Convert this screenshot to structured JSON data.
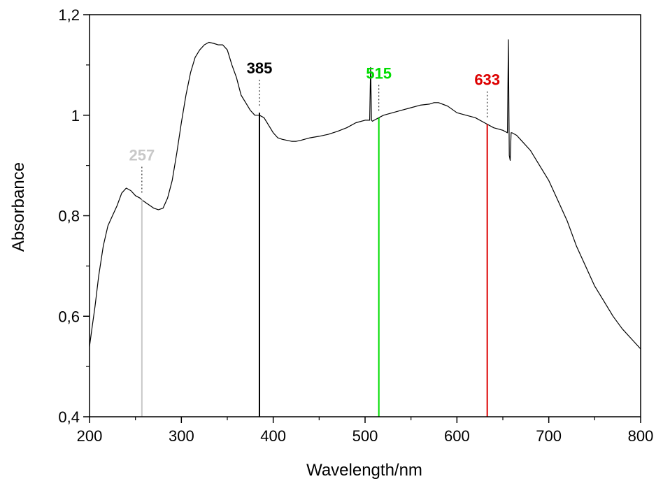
{
  "chart_data": {
    "type": "line",
    "title": "",
    "xlabel": "Wavelength/nm",
    "ylabel": "Absorbance",
    "xlim": [
      200,
      800
    ],
    "ylim": [
      0.4,
      1.2
    ],
    "x_ticks": [
      200,
      300,
      400,
      500,
      600,
      700,
      800
    ],
    "x_tick_labels": [
      "200",
      "300",
      "400",
      "500",
      "600",
      "700",
      "800"
    ],
    "y_ticks": [
      0.4,
      0.6,
      0.8,
      1.0,
      1.2
    ],
    "y_tick_labels": [
      "0,4",
      "0,6",
      "0,8",
      "1",
      "1,2"
    ],
    "grid": false,
    "legend": "none",
    "series": [
      {
        "color": "#000000",
        "x": [
          200,
          203,
          206,
          210,
          215,
          220,
          225,
          230,
          235,
          240,
          245,
          250,
          255,
          258,
          262,
          266,
          270,
          275,
          280,
          285,
          290,
          295,
          300,
          305,
          310,
          315,
          320,
          325,
          330,
          335,
          340,
          345,
          350,
          355,
          360,
          365,
          370,
          375,
          380,
          385,
          390,
          395,
          400,
          405,
          410,
          415,
          420,
          425,
          430,
          440,
          450,
          460,
          470,
          480,
          490,
          500,
          505,
          506,
          507,
          508,
          510,
          515,
          520,
          530,
          540,
          550,
          560,
          570,
          575,
          580,
          590,
          600,
          610,
          620,
          630,
          640,
          650,
          655,
          656,
          657,
          658,
          659,
          660,
          665,
          670,
          680,
          690,
          700,
          710,
          720,
          730,
          740,
          750,
          760,
          770,
          780,
          790,
          800
        ],
        "y": [
          0.54,
          0.58,
          0.62,
          0.68,
          0.74,
          0.78,
          0.8,
          0.82,
          0.845,
          0.855,
          0.85,
          0.84,
          0.835,
          0.83,
          0.825,
          0.82,
          0.815,
          0.812,
          0.815,
          0.835,
          0.87,
          0.925,
          0.985,
          1.04,
          1.085,
          1.115,
          1.13,
          1.14,
          1.145,
          1.143,
          1.14,
          1.14,
          1.13,
          1.1,
          1.075,
          1.04,
          1.025,
          1.01,
          1.0,
          1.0,
          0.995,
          0.98,
          0.965,
          0.955,
          0.952,
          0.95,
          0.948,
          0.948,
          0.95,
          0.955,
          0.958,
          0.962,
          0.968,
          0.975,
          0.985,
          0.99,
          0.99,
          1.095,
          0.99,
          0.988,
          0.99,
          0.995,
          1.0,
          1.005,
          1.01,
          1.015,
          1.02,
          1.022,
          1.025,
          1.025,
          1.018,
          1.005,
          1.0,
          0.995,
          0.985,
          0.975,
          0.97,
          0.965,
          1.15,
          0.92,
          0.91,
          0.965,
          0.965,
          0.96,
          0.95,
          0.93,
          0.9,
          0.87,
          0.83,
          0.79,
          0.74,
          0.7,
          0.66,
          0.63,
          0.6,
          0.575,
          0.555,
          0.535
        ]
      }
    ],
    "markers": [
      {
        "x": 257,
        "label": "257",
        "color": "#c8c8c8",
        "y": 0.832
      },
      {
        "x": 385,
        "label": "385",
        "color": "#000000",
        "y": 1.005
      },
      {
        "x": 515,
        "label": "515",
        "color": "#00dd00",
        "y": 0.995
      },
      {
        "x": 633,
        "label": "633",
        "color": "#dd0000",
        "y": 0.982
      }
    ]
  }
}
